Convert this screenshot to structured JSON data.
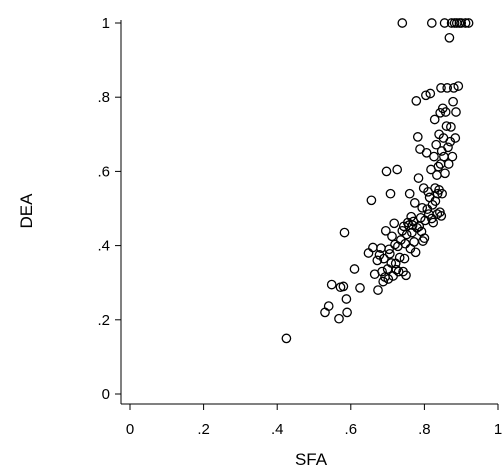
{
  "chart_data": {
    "type": "scatter",
    "xlabel": "SFA",
    "ylabel": "DEA",
    "xlim": [
      0,
      1
    ],
    "ylim": [
      0,
      1
    ],
    "x_ticks": [
      0,
      0.2,
      0.4,
      0.6,
      0.8,
      1
    ],
    "x_tick_labels": [
      "0",
      ".2",
      ".4",
      ".6",
      ".8",
      "1"
    ],
    "y_ticks": [
      0,
      0.2,
      0.4,
      0.6,
      0.8,
      1
    ],
    "y_tick_labels": [
      "0",
      ".2",
      ".4",
      ".6",
      ".8",
      "1"
    ],
    "grid": false,
    "legend": "none",
    "marker": "hollow-circle",
    "marker_color": "#000000",
    "points": [
      [
        0.425,
        0.15
      ],
      [
        0.53,
        0.22
      ],
      [
        0.54,
        0.237
      ],
      [
        0.548,
        0.295
      ],
      [
        0.568,
        0.203
      ],
      [
        0.572,
        0.288
      ],
      [
        0.58,
        0.29
      ],
      [
        0.583,
        0.435
      ],
      [
        0.59,
        0.22
      ],
      [
        0.588,
        0.256
      ],
      [
        0.61,
        0.337
      ],
      [
        0.625,
        0.286
      ],
      [
        0.648,
        0.38
      ],
      [
        0.656,
        0.522
      ],
      [
        0.66,
        0.395
      ],
      [
        0.665,
        0.323
      ],
      [
        0.672,
        0.36
      ],
      [
        0.674,
        0.28
      ],
      [
        0.678,
        0.375
      ],
      [
        0.682,
        0.393
      ],
      [
        0.685,
        0.33
      ],
      [
        0.688,
        0.303
      ],
      [
        0.69,
        0.365
      ],
      [
        0.693,
        0.315
      ],
      [
        0.695,
        0.44
      ],
      [
        0.697,
        0.6
      ],
      [
        0.7,
        0.337
      ],
      [
        0.702,
        0.31
      ],
      [
        0.704,
        0.39
      ],
      [
        0.706,
        0.378
      ],
      [
        0.708,
        0.54
      ],
      [
        0.71,
        0.353
      ],
      [
        0.712,
        0.425
      ],
      [
        0.715,
        0.318
      ],
      [
        0.718,
        0.46
      ],
      [
        0.72,
        0.403
      ],
      [
        0.722,
        0.352
      ],
      [
        0.724,
        0.335
      ],
      [
        0.726,
        0.605
      ],
      [
        0.728,
        0.398
      ],
      [
        0.73,
        0.33
      ],
      [
        0.733,
        0.368
      ],
      [
        0.736,
        0.415
      ],
      [
        0.74,
        0.44
      ],
      [
        0.742,
        0.33
      ],
      [
        0.744,
        0.452
      ],
      [
        0.746,
        0.365
      ],
      [
        0.748,
        0.405
      ],
      [
        0.74,
        1.0
      ],
      [
        0.75,
        0.32
      ],
      [
        0.752,
        0.43
      ],
      [
        0.755,
        0.462
      ],
      [
        0.758,
        0.455
      ],
      [
        0.76,
        0.54
      ],
      [
        0.762,
        0.392
      ],
      [
        0.764,
        0.478
      ],
      [
        0.766,
        0.435
      ],
      [
        0.768,
        0.455
      ],
      [
        0.77,
        0.465
      ],
      [
        0.772,
        0.41
      ],
      [
        0.774,
        0.515
      ],
      [
        0.776,
        0.382
      ],
      [
        0.778,
        0.79
      ],
      [
        0.78,
        0.448
      ],
      [
        0.782,
        0.693
      ],
      [
        0.784,
        0.582
      ],
      [
        0.786,
        0.452
      ],
      [
        0.788,
        0.66
      ],
      [
        0.79,
        0.475
      ],
      [
        0.792,
        0.438
      ],
      [
        0.794,
        0.502
      ],
      [
        0.796,
        0.412
      ],
      [
        0.798,
        0.555
      ],
      [
        0.8,
        0.42
      ],
      [
        0.802,
        0.468
      ],
      [
        0.804,
        0.805
      ],
      [
        0.806,
        0.65
      ],
      [
        0.808,
        0.498
      ],
      [
        0.81,
        0.545
      ],
      [
        0.812,
        0.485
      ],
      [
        0.814,
        0.53
      ],
      [
        0.816,
        0.81
      ],
      [
        0.818,
        0.605
      ],
      [
        0.82,
        0.473
      ],
      [
        0.82,
        1.0
      ],
      [
        0.822,
        0.51
      ],
      [
        0.824,
        0.462
      ],
      [
        0.826,
        0.64
      ],
      [
        0.828,
        0.74
      ],
      [
        0.829,
        0.555
      ],
      [
        0.83,
        0.52
      ],
      [
        0.832,
        0.672
      ],
      [
        0.834,
        0.59
      ],
      [
        0.835,
        0.485
      ],
      [
        0.836,
        0.54
      ],
      [
        0.838,
        0.613
      ],
      [
        0.84,
        0.55
      ],
      [
        0.84,
        0.7
      ],
      [
        0.842,
        0.49
      ],
      [
        0.843,
        0.758
      ],
      [
        0.844,
        0.62
      ],
      [
        0.845,
        0.825
      ],
      [
        0.846,
        0.48
      ],
      [
        0.847,
        0.655
      ],
      [
        0.848,
        0.54
      ],
      [
        0.85,
        0.77
      ],
      [
        0.852,
        0.69
      ],
      [
        0.853,
        0.64
      ],
      [
        0.855,
        1.0
      ],
      [
        0.856,
        0.595
      ],
      [
        0.858,
        0.76
      ],
      [
        0.86,
        0.722
      ],
      [
        0.862,
        0.825
      ],
      [
        0.864,
        0.665
      ],
      [
        0.866,
        0.62
      ],
      [
        0.868,
        0.96
      ],
      [
        0.87,
        0.68
      ],
      [
        0.872,
        0.72
      ],
      [
        0.874,
        1.0
      ],
      [
        0.876,
        0.64
      ],
      [
        0.878,
        0.788
      ],
      [
        0.88,
        0.825
      ],
      [
        0.882,
        1.0
      ],
      [
        0.884,
        0.69
      ],
      [
        0.886,
        0.76
      ],
      [
        0.888,
        1.0
      ],
      [
        0.892,
        0.83
      ],
      [
        0.895,
        1.0
      ],
      [
        0.9,
        1.0
      ],
      [
        0.912,
        1.0
      ],
      [
        0.92,
        1.0
      ]
    ]
  }
}
